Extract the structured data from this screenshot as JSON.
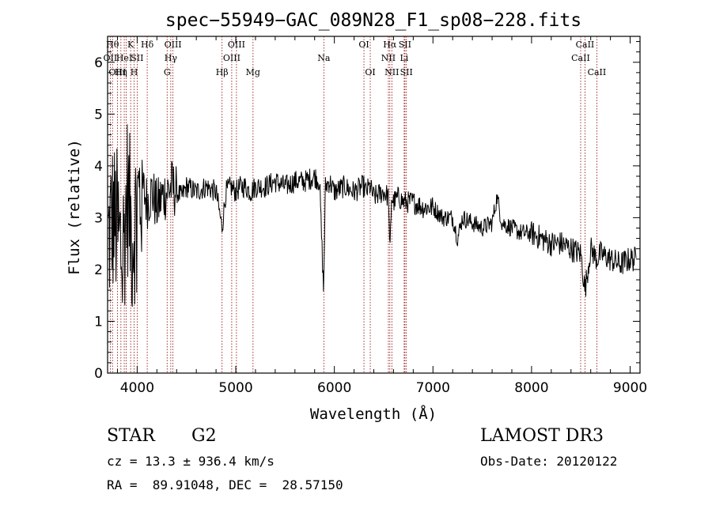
{
  "chart_data": {
    "type": "line",
    "title": "spec−55949−GAC_089N28_F1_sp08−228.fits",
    "xlabel": "Wavelength (Å)",
    "ylabel": "Flux (relative)",
    "xlim": [
      3700,
      9100
    ],
    "ylim": [
      0,
      6.5
    ],
    "xticks": [
      4000,
      5000,
      6000,
      7000,
      8000,
      9000
    ],
    "xtick_labels": [
      "4000",
      "5000",
      "6000",
      "7000",
      "8000",
      "9000"
    ],
    "yticks": [
      0,
      1,
      2,
      3,
      4,
      5,
      6
    ],
    "ytick_labels": [
      "0",
      "1",
      "2",
      "3",
      "4",
      "5",
      "6"
    ],
    "line_color": "#8b0000",
    "series": [
      {
        "name": "flux",
        "x": [
          3700,
          3750,
          3800,
          3850,
          3900,
          3950,
          4000,
          4050,
          4100,
          4150,
          4200,
          4250,
          4300,
          4350,
          4400,
          4450,
          4500,
          4600,
          4700,
          4800,
          4861,
          4900,
          4950,
          5000,
          5050,
          5100,
          5150,
          5200,
          5300,
          5400,
          5500,
          5600,
          5700,
          5800,
          5850,
          5890,
          5910,
          5950,
          6000,
          6100,
          6200,
          6280,
          6300,
          6320,
          6360,
          6400,
          6500,
          6550,
          6562,
          6580,
          6600,
          6650,
          6700,
          6800,
          6900,
          7000,
          7100,
          7200,
          7250,
          7300,
          7400,
          7500,
          7600,
          7650,
          7700,
          7800,
          7900,
          8000,
          8100,
          8200,
          8300,
          8400,
          8500,
          8542,
          8600,
          8662,
          8700,
          8800,
          8900,
          9000,
          9050
        ],
        "y": [
          2.5,
          3.0,
          2.8,
          2.2,
          3.5,
          2.6,
          3.2,
          3.6,
          3.3,
          3.5,
          3.2,
          3.4,
          3.5,
          3.6,
          3.5,
          3.4,
          3.6,
          3.5,
          3.6,
          3.5,
          2.8,
          3.5,
          3.6,
          3.5,
          3.6,
          3.6,
          3.5,
          3.6,
          3.6,
          3.7,
          3.6,
          3.7,
          3.7,
          3.8,
          3.7,
          1.6,
          3.6,
          3.7,
          3.5,
          3.6,
          3.5,
          3.6,
          3.6,
          3.5,
          3.6,
          3.4,
          3.5,
          3.4,
          2.2,
          3.4,
          3.3,
          3.4,
          3.3,
          3.3,
          3.2,
          3.2,
          3.0,
          3.0,
          2.6,
          3.0,
          2.9,
          2.8,
          2.9,
          3.4,
          2.9,
          2.8,
          2.7,
          2.7,
          2.6,
          2.5,
          2.5,
          2.4,
          2.3,
          1.6,
          2.4,
          2.2,
          2.3,
          2.2,
          2.1,
          2.2,
          2.2
        ]
      }
    ],
    "lines": [
      {
        "wave": 3727,
        "labels": [
          "OII"
        ],
        "row": 1
      },
      {
        "wave": 3750,
        "labels": [
          "Hθ"
        ],
        "row": 0
      },
      {
        "wave": 3800,
        "labels": [
          "OIII"
        ],
        "row": 2
      },
      {
        "wave": 3835,
        "labels": [
          "Hη"
        ],
        "row": 2
      },
      {
        "wave": 3869,
        "labels": [
          "HeI"
        ],
        "row": 1
      },
      {
        "wave": 3889,
        "labels": [
          ""
        ],
        "row": 0
      },
      {
        "wave": 3934,
        "labels": [
          "K"
        ],
        "row": 0
      },
      {
        "wave": 3969,
        "labels": [
          "H"
        ],
        "row": 2
      },
      {
        "wave": 4000,
        "labels": [
          "SII"
        ],
        "row": 1
      },
      {
        "wave": 4102,
        "labels": [
          "Hδ"
        ],
        "row": 0
      },
      {
        "wave": 4304,
        "labels": [
          "G"
        ],
        "row": 2
      },
      {
        "wave": 4341,
        "labels": [
          "Hγ"
        ],
        "row": 1
      },
      {
        "wave": 4363,
        "labels": [
          "OIII"
        ],
        "row": 0
      },
      {
        "wave": 4861,
        "labels": [
          "Hβ"
        ],
        "row": 2
      },
      {
        "wave": 4959,
        "labels": [
          "OIII"
        ],
        "row": 1
      },
      {
        "wave": 5007,
        "labels": [
          "OIII"
        ],
        "row": 0
      },
      {
        "wave": 5175,
        "labels": [
          "Mg"
        ],
        "row": 2
      },
      {
        "wave": 5893,
        "labels": [
          "Na"
        ],
        "row": 1
      },
      {
        "wave": 6300,
        "labels": [
          "OI"
        ],
        "row": 0
      },
      {
        "wave": 6364,
        "labels": [
          "OI"
        ],
        "row": 2
      },
      {
        "wave": 6548,
        "labels": [
          "NII"
        ],
        "row": 1
      },
      {
        "wave": 6563,
        "labels": [
          "Hα"
        ],
        "row": 0
      },
      {
        "wave": 6583,
        "labels": [
          "NII"
        ],
        "row": 2
      },
      {
        "wave": 6708,
        "labels": [
          "Li"
        ],
        "row": 1
      },
      {
        "wave": 6716,
        "labels": [
          "SII"
        ],
        "row": 0
      },
      {
        "wave": 6731,
        "labels": [
          "SII"
        ],
        "row": 2
      },
      {
        "wave": 8498,
        "labels": [
          "CaII"
        ],
        "row": 1
      },
      {
        "wave": 8542,
        "labels": [
          "CaII"
        ],
        "row": 0
      },
      {
        "wave": 8662,
        "labels": [
          "CaII"
        ],
        "row": 2
      }
    ]
  },
  "info": {
    "class_label": "STAR",
    "subclass": "G2",
    "survey": "LAMOST DR3",
    "cz": "cz = 13.3 ± 936.4 km/s",
    "obs_date": "Obs-Date: 20120122",
    "coords": "RA =  89.91048, DEC =  28.57150"
  }
}
